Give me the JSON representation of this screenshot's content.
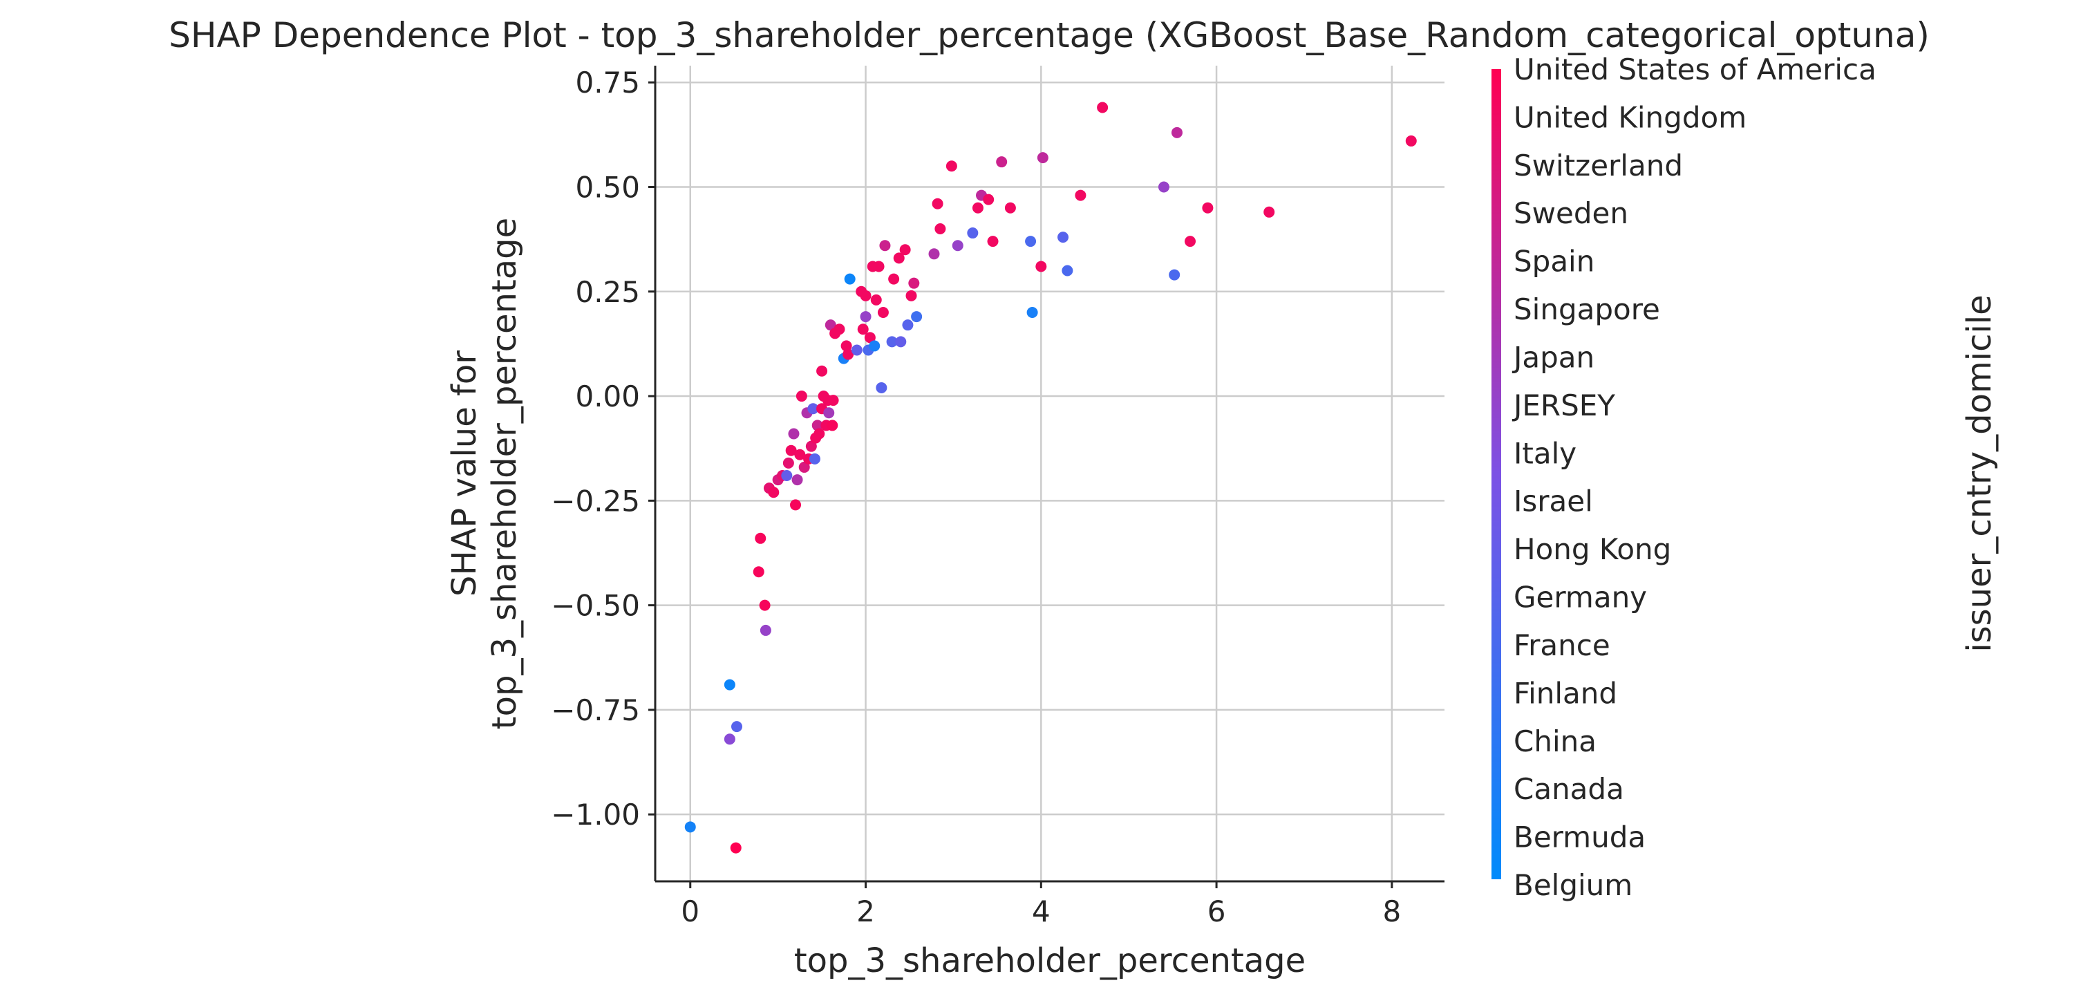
{
  "chart_data": {
    "type": "scatter",
    "title": "SHAP Dependence Plot - top_3_shareholder_percentage (XGBoost_Base_Random_categorical_optuna)",
    "xlabel": "top_3_shareholder_percentage",
    "ylabel_line1": "SHAP value for",
    "ylabel_line2": "top_3_shareholder_percentage",
    "xlim": [
      -0.4,
      8.6
    ],
    "ylim": [
      -1.16,
      0.79
    ],
    "x_ticks": [
      0,
      2,
      4,
      6,
      8
    ],
    "x_tick_labels": [
      "0",
      "2",
      "4",
      "6",
      "8"
    ],
    "y_ticks": [
      -1.0,
      -0.75,
      -0.5,
      -0.25,
      0.0,
      0.25,
      0.5,
      0.75
    ],
    "y_tick_labels": [
      "−1.00",
      "−0.75",
      "−0.50",
      "−0.25",
      "0.00",
      "0.25",
      "0.50",
      "0.75"
    ],
    "grid": true,
    "colorbar": {
      "label": "issuer_cntry_domicile",
      "categories": [
        "Belgium",
        "Bermuda",
        "Canada",
        "China",
        "Finland",
        "France",
        "Germany",
        "Hong Kong",
        "Israel",
        "Italy",
        "JERSEY",
        "Japan",
        "Singapore",
        "Spain",
        "Sweden",
        "Switzerland",
        "United Kingdom",
        "United States of America"
      ],
      "color_low": "#008bfb",
      "color_mid": "#7c52e5",
      "color_high": "#ff0052"
    },
    "points": [
      {
        "x": 0.0,
        "y": -1.03,
        "c": 0.08
      },
      {
        "x": 0.52,
        "y": -1.08,
        "c": 1.0
      },
      {
        "x": 0.45,
        "y": -0.69,
        "c": 0.05
      },
      {
        "x": 0.45,
        "y": -0.82,
        "c": 0.55
      },
      {
        "x": 0.53,
        "y": -0.79,
        "c": 0.35
      },
      {
        "x": 0.78,
        "y": -0.42,
        "c": 0.97
      },
      {
        "x": 0.8,
        "y": -0.34,
        "c": 0.97
      },
      {
        "x": 0.85,
        "y": -0.5,
        "c": 0.97
      },
      {
        "x": 0.86,
        "y": -0.56,
        "c": 0.6
      },
      {
        "x": 0.9,
        "y": -0.22,
        "c": 0.9
      },
      {
        "x": 0.95,
        "y": -0.23,
        "c": 0.95
      },
      {
        "x": 1.0,
        "y": -0.2,
        "c": 0.85
      },
      {
        "x": 1.05,
        "y": -0.19,
        "c": 0.9
      },
      {
        "x": 1.1,
        "y": -0.19,
        "c": 0.4
      },
      {
        "x": 1.12,
        "y": -0.16,
        "c": 0.9
      },
      {
        "x": 1.15,
        "y": -0.13,
        "c": 0.95
      },
      {
        "x": 1.18,
        "y": -0.09,
        "c": 0.7
      },
      {
        "x": 1.2,
        "y": -0.26,
        "c": 0.97
      },
      {
        "x": 1.22,
        "y": -0.2,
        "c": 0.7
      },
      {
        "x": 1.25,
        "y": -0.14,
        "c": 0.95
      },
      {
        "x": 1.27,
        "y": 0.0,
        "c": 0.95
      },
      {
        "x": 1.3,
        "y": -0.17,
        "c": 0.85
      },
      {
        "x": 1.33,
        "y": -0.04,
        "c": 0.7
      },
      {
        "x": 1.35,
        "y": -0.15,
        "c": 0.95
      },
      {
        "x": 1.38,
        "y": -0.12,
        "c": 0.9
      },
      {
        "x": 1.4,
        "y": -0.03,
        "c": 0.4
      },
      {
        "x": 1.42,
        "y": -0.15,
        "c": 0.35
      },
      {
        "x": 1.43,
        "y": -0.1,
        "c": 0.95
      },
      {
        "x": 1.45,
        "y": -0.07,
        "c": 0.8
      },
      {
        "x": 1.47,
        "y": -0.09,
        "c": 0.95
      },
      {
        "x": 1.5,
        "y": 0.06,
        "c": 0.95
      },
      {
        "x": 1.5,
        "y": -0.03,
        "c": 0.95
      },
      {
        "x": 1.52,
        "y": 0.0,
        "c": 0.95
      },
      {
        "x": 1.55,
        "y": -0.07,
        "c": 0.95
      },
      {
        "x": 1.57,
        "y": -0.01,
        "c": 0.95
      },
      {
        "x": 1.58,
        "y": -0.04,
        "c": 0.65
      },
      {
        "x": 1.6,
        "y": 0.17,
        "c": 0.75
      },
      {
        "x": 1.62,
        "y": -0.07,
        "c": 0.97
      },
      {
        "x": 1.63,
        "y": -0.01,
        "c": 0.95
      },
      {
        "x": 1.65,
        "y": 0.15,
        "c": 0.95
      },
      {
        "x": 1.7,
        "y": 0.16,
        "c": 0.95
      },
      {
        "x": 1.75,
        "y": 0.09,
        "c": 0.1
      },
      {
        "x": 1.78,
        "y": 0.12,
        "c": 0.95
      },
      {
        "x": 1.8,
        "y": 0.1,
        "c": 0.95
      },
      {
        "x": 1.82,
        "y": 0.28,
        "c": 0.05
      },
      {
        "x": 1.9,
        "y": 0.11,
        "c": 0.4
      },
      {
        "x": 1.95,
        "y": 0.25,
        "c": 0.95
      },
      {
        "x": 1.97,
        "y": 0.16,
        "c": 0.95
      },
      {
        "x": 2.0,
        "y": 0.19,
        "c": 0.6
      },
      {
        "x": 2.0,
        "y": 0.24,
        "c": 0.95
      },
      {
        "x": 2.03,
        "y": 0.11,
        "c": 0.3
      },
      {
        "x": 2.05,
        "y": 0.14,
        "c": 0.95
      },
      {
        "x": 2.08,
        "y": 0.31,
        "c": 0.95
      },
      {
        "x": 2.1,
        "y": 0.12,
        "c": 0.1
      },
      {
        "x": 2.12,
        "y": 0.23,
        "c": 0.95
      },
      {
        "x": 2.15,
        "y": 0.31,
        "c": 0.95
      },
      {
        "x": 2.18,
        "y": 0.02,
        "c": 0.35
      },
      {
        "x": 2.2,
        "y": 0.2,
        "c": 0.95
      },
      {
        "x": 2.22,
        "y": 0.36,
        "c": 0.8
      },
      {
        "x": 2.3,
        "y": 0.13,
        "c": 0.35
      },
      {
        "x": 2.32,
        "y": 0.28,
        "c": 0.95
      },
      {
        "x": 2.38,
        "y": 0.33,
        "c": 0.95
      },
      {
        "x": 2.4,
        "y": 0.13,
        "c": 0.4
      },
      {
        "x": 2.45,
        "y": 0.35,
        "c": 0.95
      },
      {
        "x": 2.48,
        "y": 0.17,
        "c": 0.35
      },
      {
        "x": 2.52,
        "y": 0.24,
        "c": 0.95
      },
      {
        "x": 2.55,
        "y": 0.27,
        "c": 0.85
      },
      {
        "x": 2.58,
        "y": 0.19,
        "c": 0.25
      },
      {
        "x": 2.78,
        "y": 0.34,
        "c": 0.7
      },
      {
        "x": 2.82,
        "y": 0.46,
        "c": 0.95
      },
      {
        "x": 2.85,
        "y": 0.4,
        "c": 0.95
      },
      {
        "x": 2.98,
        "y": 0.55,
        "c": 0.95
      },
      {
        "x": 3.05,
        "y": 0.36,
        "c": 0.6
      },
      {
        "x": 3.22,
        "y": 0.39,
        "c": 0.35
      },
      {
        "x": 3.28,
        "y": 0.45,
        "c": 0.95
      },
      {
        "x": 3.32,
        "y": 0.48,
        "c": 0.75
      },
      {
        "x": 3.4,
        "y": 0.47,
        "c": 0.95
      },
      {
        "x": 3.45,
        "y": 0.37,
        "c": 0.95
      },
      {
        "x": 3.55,
        "y": 0.56,
        "c": 0.8
      },
      {
        "x": 3.65,
        "y": 0.45,
        "c": 0.95
      },
      {
        "x": 3.88,
        "y": 0.37,
        "c": 0.3
      },
      {
        "x": 3.9,
        "y": 0.2,
        "c": 0.1
      },
      {
        "x": 4.0,
        "y": 0.31,
        "c": 0.95
      },
      {
        "x": 4.02,
        "y": 0.57,
        "c": 0.75
      },
      {
        "x": 4.25,
        "y": 0.38,
        "c": 0.35
      },
      {
        "x": 4.3,
        "y": 0.3,
        "c": 0.3
      },
      {
        "x": 4.45,
        "y": 0.48,
        "c": 0.95
      },
      {
        "x": 4.7,
        "y": 0.69,
        "c": 0.95
      },
      {
        "x": 5.4,
        "y": 0.5,
        "c": 0.6
      },
      {
        "x": 5.52,
        "y": 0.29,
        "c": 0.3
      },
      {
        "x": 5.55,
        "y": 0.63,
        "c": 0.75
      },
      {
        "x": 5.7,
        "y": 0.37,
        "c": 0.95
      },
      {
        "x": 5.9,
        "y": 0.45,
        "c": 0.95
      },
      {
        "x": 6.6,
        "y": 0.44,
        "c": 0.95
      },
      {
        "x": 8.22,
        "y": 0.61,
        "c": 0.95
      }
    ]
  }
}
